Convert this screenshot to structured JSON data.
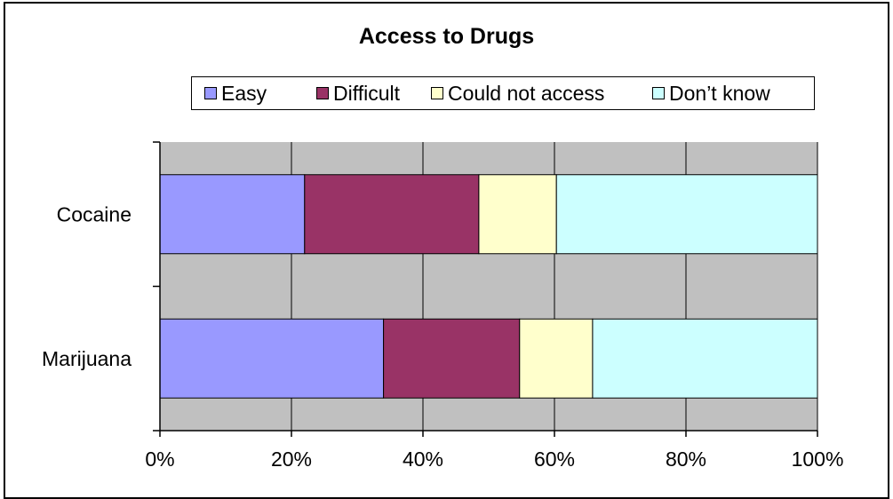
{
  "chart_data": {
    "type": "bar",
    "orientation": "horizontal",
    "stacked": "percent",
    "title": "Access to Drugs",
    "categories": [
      "Cocaine",
      "Marijuana"
    ],
    "series": [
      {
        "name": "Easy",
        "color": "#9999ff",
        "values": [
          22,
          34
        ]
      },
      {
        "name": "Difficult",
        "color": "#993366",
        "values": [
          26.5,
          20.7
        ]
      },
      {
        "name": "Could not access",
        "color": "#ffffcc",
        "values": [
          11.8,
          11.1
        ]
      },
      {
        "name": "Don’t know",
        "color": "#ccffff",
        "values": [
          39.7,
          34.2
        ]
      }
    ],
    "xlim": [
      0,
      100
    ],
    "x_ticks": [
      "0%",
      "20%",
      "40%",
      "60%",
      "80%",
      "100%"
    ],
    "grid": true,
    "plot_background": "#c0c0c0",
    "legend_position": "top"
  }
}
